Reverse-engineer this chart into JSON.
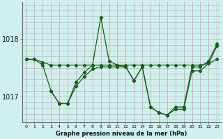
{
  "title": "Graphe pression niveau de la mer (hPa)",
  "bg_color": "#cff0ee",
  "vgrid_color": "#e8a0a0",
  "hgrid_color": "#b0c8c8",
  "line_color": "#1a5c1a",
  "marker_color": "#1a5c1a",
  "xlim": [
    -0.5,
    23.5
  ],
  "ylim": [
    1016.55,
    1018.65
  ],
  "yticks": [
    1017,
    1018
  ],
  "xticks": [
    0,
    1,
    2,
    3,
    4,
    5,
    6,
    7,
    8,
    9,
    10,
    11,
    12,
    13,
    14,
    15,
    16,
    17,
    18,
    19,
    20,
    21,
    22,
    23
  ],
  "series": [
    {
      "x": [
        0,
        1,
        2,
        3,
        4,
        5,
        6,
        7,
        8,
        9,
        10,
        11,
        12,
        13,
        14,
        15,
        16,
        17,
        18,
        19,
        20,
        21,
        22,
        23
      ],
      "y": [
        1017.65,
        1017.65,
        1017.55,
        1017.1,
        1016.88,
        1016.88,
        1017.25,
        1017.42,
        1017.55,
        1018.38,
        1017.62,
        1017.55,
        1017.52,
        1017.28,
        1017.52,
        1016.82,
        1016.72,
        1016.68,
        1016.82,
        1016.82,
        1017.52,
        1017.52,
        1017.62,
        1017.92
      ]
    },
    {
      "x": [
        0,
        1,
        2,
        3,
        4,
        5,
        6,
        7,
        8,
        9,
        10,
        11,
        12,
        13,
        14,
        15,
        16,
        17,
        18,
        19,
        20,
        21,
        22,
        23
      ],
      "y": [
        1017.65,
        1017.65,
        1017.6,
        1017.55,
        1017.55,
        1017.55,
        1017.55,
        1017.55,
        1017.55,
        1017.55,
        1017.55,
        1017.55,
        1017.55,
        1017.55,
        1017.55,
        1017.55,
        1017.55,
        1017.55,
        1017.55,
        1017.55,
        1017.55,
        1017.55,
        1017.58,
        1017.65
      ]
    },
    {
      "x": [
        3,
        4,
        5,
        6,
        7,
        8,
        9,
        10,
        11,
        12,
        13,
        14,
        15,
        16,
        17,
        18,
        19,
        20,
        21,
        22,
        23
      ],
      "y": [
        1017.1,
        1016.88,
        1016.88,
        1017.18,
        1017.35,
        1017.48,
        1017.52,
        1017.52,
        1017.52,
        1017.52,
        1017.28,
        1017.52,
        1016.82,
        1016.72,
        1016.68,
        1016.78,
        1016.78,
        1017.45,
        1017.45,
        1017.58,
        1017.88
      ]
    }
  ]
}
